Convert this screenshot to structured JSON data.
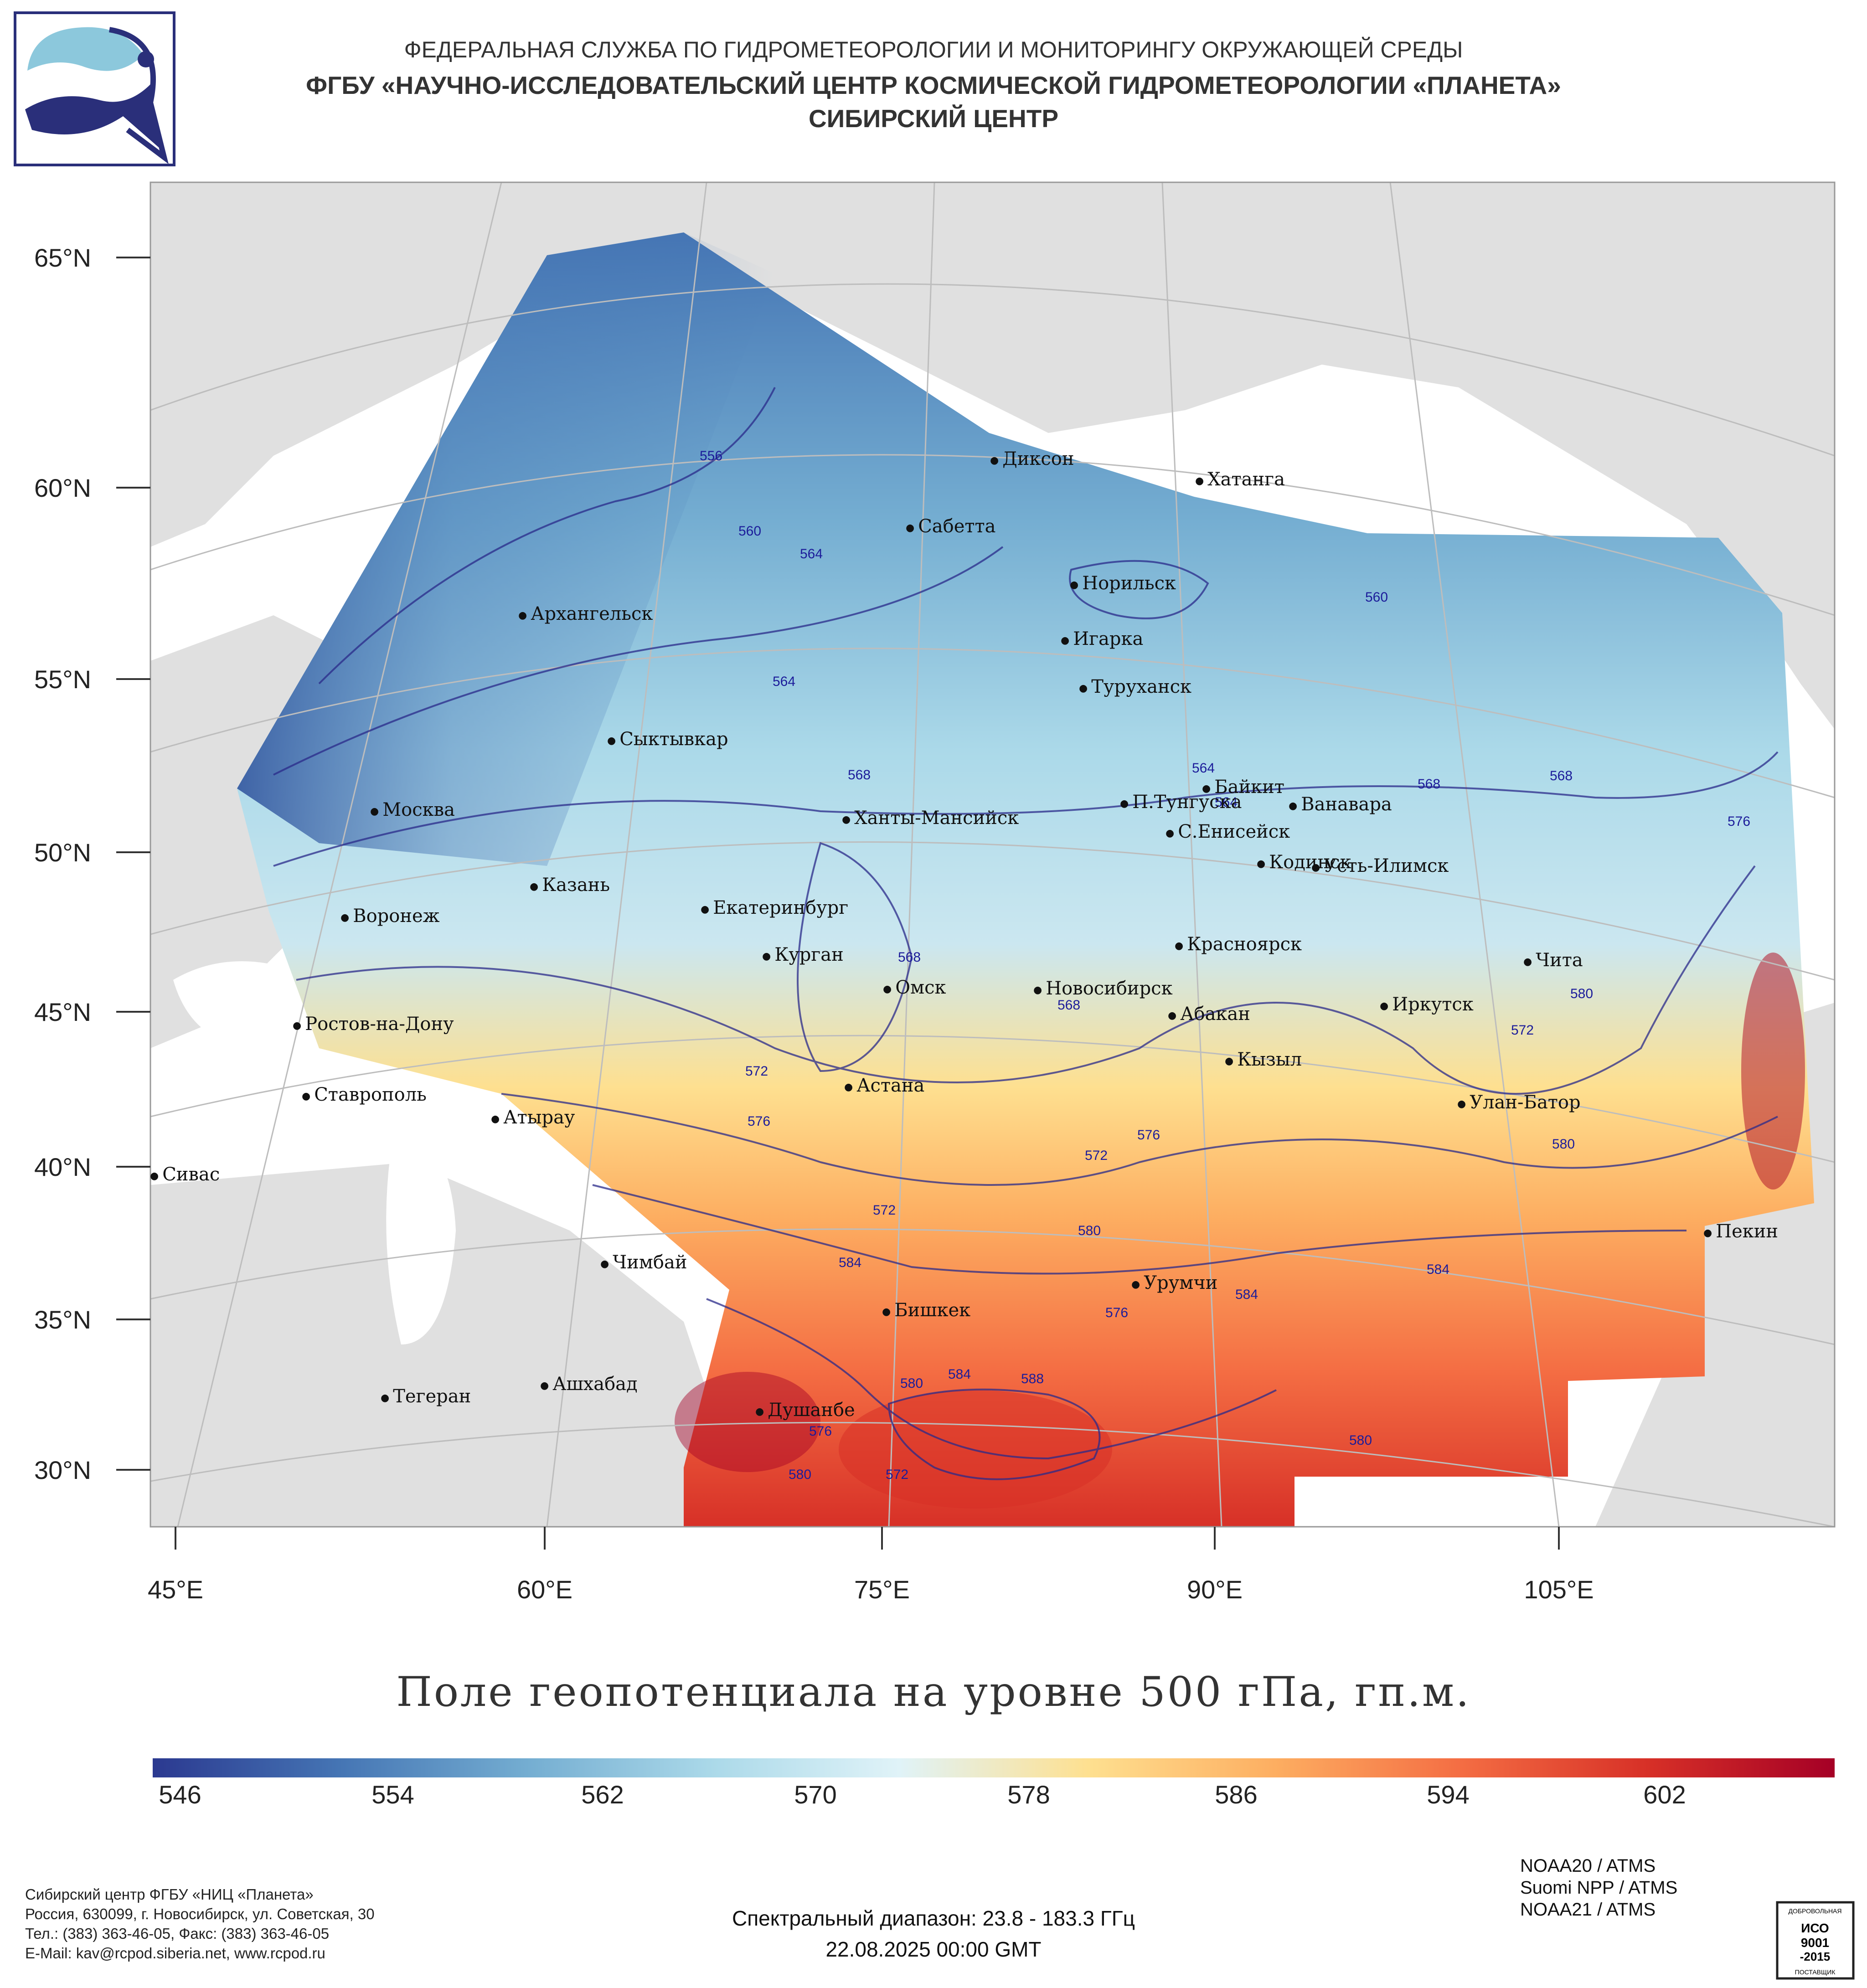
{
  "header": {
    "line1": "ФЕДЕРАЛЬНАЯ СЛУЖБА ПО ГИДРОМЕТЕОРОЛОГИИ И МОНИТОРИНГУ ОКРУЖАЮЩЕЙ СРЕДЫ",
    "line2": "ФГБУ «НАУЧНО-ИССЛЕДОВАТЕЛЬСКИЙ ЦЕНТР КОСМИЧЕСКОЙ ГИДРОМЕТЕОРОЛОГИИ «ПЛАНЕТА»",
    "line3": "СИБИРСКИЙ ЦЕНТР"
  },
  "logo": {
    "icon": "roshydromet-logo-icon",
    "colors": [
      "#2a2f7a",
      "#8cc8dc"
    ]
  },
  "map": {
    "lat_labels": [
      "65°N",
      "60°N",
      "55°N",
      "50°N",
      "45°N",
      "40°N",
      "35°N",
      "30°N"
    ],
    "lon_labels": [
      "45°E",
      "60°E",
      "75°E",
      "90°E",
      "105°E"
    ],
    "cities": [
      "Диксон",
      "Хатанга",
      "Сабетта",
      "Норильск",
      "Архангельск",
      "Игарка",
      "Туруханск",
      "Сыктывкар",
      "Москва",
      "Ханты-Мансийск",
      "Байкит",
      "П.Тунгуска",
      "Ванавара",
      "С.Енисейск",
      "Кодинск",
      "Усть-Илимск",
      "Казань",
      "Воронеж",
      "Екатеринбург",
      "Красноярск",
      "Курган",
      "Чита",
      "Омск",
      "Новосибирск",
      "Ростов-на-Дону",
      "Абакан",
      "Иркутск",
      "Кызыл",
      "Ставрополь",
      "Астана",
      "Улан-Батор",
      "Атырау",
      "Сивас",
      "Пекин",
      "Урумчи",
      "Чимбай",
      "Бишкек",
      "Ашхабад",
      "Тегеран",
      "Душанбе"
    ],
    "contour_labels": [
      "556",
      "560",
      "564",
      "560",
      "564",
      "568",
      "564",
      "564",
      "568",
      "568",
      "576",
      "568",
      "568",
      "572",
      "576",
      "572",
      "576",
      "572",
      "580",
      "572",
      "580",
      "584",
      "580",
      "584",
      "584",
      "576",
      "580",
      "584",
      "588",
      "576",
      "580",
      "572",
      "580"
    ],
    "colors": {
      "land": "#e0e0e0",
      "sea": "#ffffff",
      "contour": "#2a2a8a",
      "grid": "#bdbdbd"
    }
  },
  "title": "Поле геопотенциала на уровне 500 гПа, гп.м.",
  "colorbar": {
    "ticks": [
      "546",
      "554",
      "562",
      "570",
      "578",
      "586",
      "594",
      "602"
    ],
    "colors": [
      "#2b3990",
      "#4575b4",
      "#74add1",
      "#abd9e9",
      "#e0f3f8",
      "#fee090",
      "#fdae61",
      "#f46d43",
      "#d73027",
      "#a50026"
    ]
  },
  "footer": {
    "address_lines": [
      "Сибирский центр ФГБУ «НИЦ «Планета»",
      "Россия, 630099, г. Новосибирск, ул. Советская, 30",
      "Тел.: (383) 363-46-05, Факс: (383) 363-46-05",
      "E-Mail: kav@rcpod.siberia.net, www.rcpod.ru"
    ],
    "spectral": "Спектральный диапазон: 23.8 - 183.3 ГГц",
    "datetime": "22.08.2025 00:00 GMT",
    "satellites": [
      "NOAA20 / ATMS",
      "Suomi NPP / ATMS",
      "NOAA21 / ATMS"
    ],
    "iso_badge": {
      "top": "ДОБРОВОЛЬНАЯ",
      "mid1": "ИСО",
      "mid2": "9001",
      "mid3": "-2015",
      "bottom": "ПОСТАВЩИК"
    }
  }
}
